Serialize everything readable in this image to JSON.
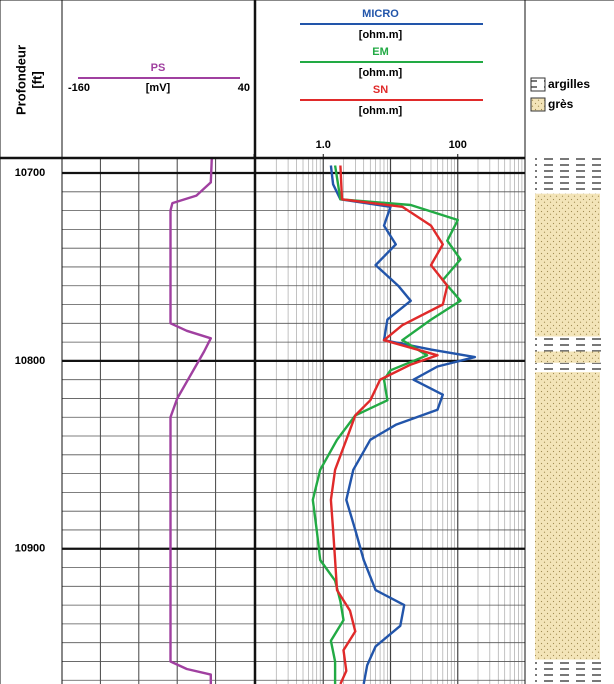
{
  "chart_data": [
    {
      "type": "line",
      "orientation": "vertical",
      "ylabel": [
        "Profondeur",
        "[ft]"
      ],
      "ylim": [
        10692,
        10972
      ],
      "yticks": [
        10700,
        10800,
        10900
      ],
      "ygrid_step": 10,
      "xlim": [
        -160,
        40
      ],
      "xticks": [
        -160,
        40
      ],
      "xgrid": [
        -120,
        -80,
        -40,
        0
      ],
      "series": [
        {
          "name": "PS",
          "unit": "[mV]",
          "color": "#a040a0",
          "depth": [
            10692,
            10705,
            10712,
            10716,
            10720,
            10780,
            10784,
            10788,
            10795,
            10820,
            10830,
            10960,
            10964,
            10967,
            10972
          ],
          "values": [
            -4,
            -5,
            -20,
            -45,
            -47,
            -47,
            -30,
            -5,
            -12,
            -40,
            -47,
            -47,
            -30,
            -5,
            -5
          ]
        }
      ]
    },
    {
      "type": "line",
      "orientation": "vertical",
      "log_x": true,
      "ylim": [
        10692,
        10972
      ],
      "yticks": [
        10700,
        10800,
        10900
      ],
      "ygrid_step": 10,
      "xlim": [
        0.1,
        1000
      ],
      "xticks": [
        {
          "value": 1,
          "label": "1.0"
        },
        100
      ],
      "series": [
        {
          "name": "MICRO",
          "unit": "[ohm.m]",
          "color": "#2255aa",
          "depth": [
            10696,
            10706,
            10714,
            10718,
            10728,
            10738,
            10749,
            10760,
            10768,
            10778,
            10789,
            10794,
            10798,
            10803,
            10810,
            10818,
            10826,
            10834,
            10842,
            10858,
            10874,
            10890,
            10906,
            10922,
            10930,
            10941,
            10952,
            10962,
            10972
          ],
          "values": [
            1.3,
            1.4,
            1.8,
            10,
            8,
            12,
            6,
            13,
            20,
            9,
            8,
            40,
            180,
            50,
            22,
            60,
            50,
            12,
            5,
            2.8,
            2.2,
            3,
            4,
            6,
            16,
            14,
            6,
            4.5,
            4
          ]
        },
        {
          "name": "EM",
          "unit": "[ohm.m]",
          "color": "#22aa44",
          "depth": [
            10696,
            10714,
            10717,
            10725,
            10736,
            10746,
            10757,
            10768,
            10778,
            10789,
            10797,
            10805,
            10810,
            10821,
            10829,
            10842,
            10858,
            10874,
            10890,
            10906,
            10917,
            10928,
            10938,
            10949,
            10960,
            10972
          ],
          "values": [
            1.5,
            1.8,
            20,
            100,
            70,
            110,
            60,
            110,
            40,
            15,
            35,
            10,
            8,
            9,
            3,
            1.6,
            0.9,
            0.7,
            0.8,
            0.9,
            1.5,
            1.8,
            2,
            1.3,
            1.5,
            1.5
          ]
        },
        {
          "name": "SN",
          "unit": "[ohm.m]",
          "color": "#e02a2a",
          "depth": [
            10696,
            10714,
            10718,
            10728,
            10738,
            10749,
            10760,
            10770,
            10781,
            10789,
            10797,
            10802,
            10810,
            10821,
            10829,
            10842,
            10858,
            10874,
            10890,
            10906,
            10922,
            10933,
            10944,
            10954,
            10965,
            10972
          ],
          "values": [
            1.8,
            1.9,
            15,
            40,
            60,
            40,
            70,
            60,
            15,
            8,
            50,
            20,
            7,
            5,
            3,
            2.2,
            1.5,
            1.3,
            1.4,
            1.5,
            1.6,
            2.5,
            3,
            2,
            2.2,
            1.8
          ]
        }
      ]
    },
    {
      "type": "lithology",
      "ylim": [
        10692,
        10972
      ],
      "series": [
        {
          "name": "argilles",
          "intervals": [
            [
              10692,
              10711
            ],
            [
              10787,
              10795
            ],
            [
              10801,
              10806
            ],
            [
              10959,
              10972
            ]
          ]
        },
        {
          "name": "grès",
          "intervals": [
            [
              10711,
              10787
            ],
            [
              10795,
              10801
            ],
            [
              10806,
              10959
            ]
          ]
        }
      ]
    }
  ]
}
